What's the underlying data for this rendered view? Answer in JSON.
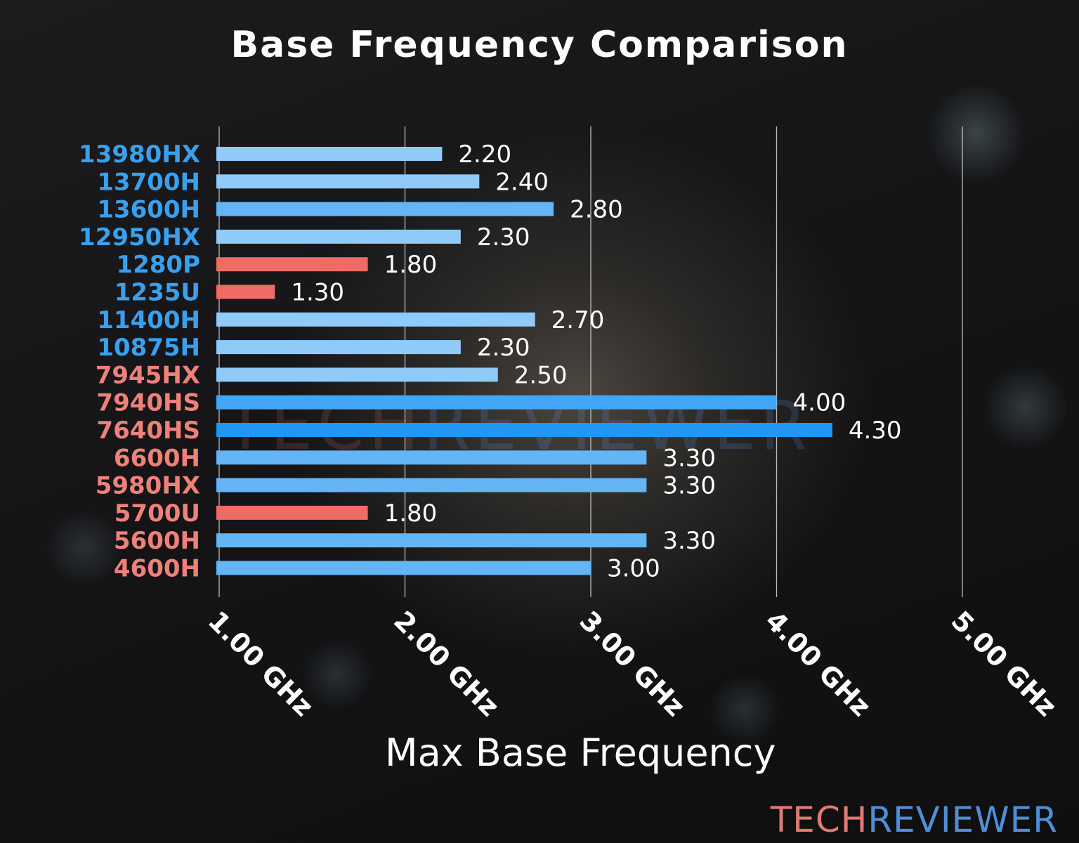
{
  "colors": {
    "intel_label": "#3aa0ee",
    "amd_label": "#ee8179",
    "bar_low": "#ee6b66",
    "bar_light": "#90caf9",
    "bar_mid": "#64b5f6",
    "bar_strong": "#42a5f5",
    "bar_max": "#2196f3",
    "gridline": "#d9d9d9",
    "value_text": "#ffffff"
  },
  "brand": {
    "part1": "TECH",
    "part2": "REVIEWER"
  },
  "chart_data": {
    "type": "bar",
    "orientation": "horizontal",
    "title": "Base Frequency Comparison",
    "xlabel": "Max Base Frequency",
    "ylabel": "",
    "xlim": [
      1.0,
      5.0
    ],
    "grid": true,
    "x_ticks": [
      {
        "value": 1.0,
        "label": "1.00 GHz"
      },
      {
        "value": 2.0,
        "label": "2.00 GHz"
      },
      {
        "value": 3.0,
        "label": "3.00 GHz"
      },
      {
        "value": 4.0,
        "label": "4.00 GHz"
      },
      {
        "value": 5.0,
        "label": "5.00 GHz"
      }
    ],
    "categories": [
      "13980HX",
      "13700H",
      "13600H",
      "12950HX",
      "1280P",
      "1235U",
      "11400H",
      "10875H",
      "7945HX",
      "7940HS",
      "7640HS",
      "6600H",
      "5980HX",
      "5700U",
      "5600H",
      "4600H"
    ],
    "values": [
      2.2,
      2.4,
      2.8,
      2.3,
      1.8,
      1.3,
      2.7,
      2.3,
      2.5,
      4.0,
      4.3,
      3.3,
      3.3,
      1.8,
      3.3,
      3.0
    ],
    "value_labels": [
      "2.20",
      "2.40",
      "2.80",
      "2.30",
      "1.80",
      "1.30",
      "2.70",
      "2.30",
      "2.50",
      "4.00",
      "4.30",
      "3.30",
      "3.30",
      "1.80",
      "3.30",
      "3.00"
    ],
    "label_groups": [
      "intel",
      "intel",
      "intel",
      "intel",
      "intel",
      "intel",
      "intel",
      "intel",
      "amd",
      "amd",
      "amd",
      "amd",
      "amd",
      "amd",
      "amd",
      "amd"
    ]
  }
}
